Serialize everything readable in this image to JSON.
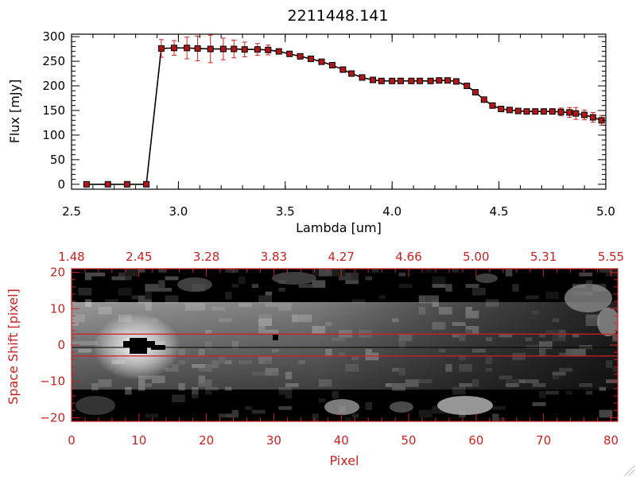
{
  "colors": {
    "axis": "#000000",
    "accent": "#cc2222",
    "marker": "#b01818",
    "line": "#000000"
  },
  "chart_data": [
    {
      "type": "line",
      "title": "2211448.141",
      "xlabel": "Lambda [um]",
      "ylabel": "Flux [mJy]",
      "xlim": [
        2.5,
        5.0
      ],
      "ylim": [
        -10,
        305
      ],
      "x_ticks": [
        2.5,
        3.0,
        3.5,
        4.0,
        4.5,
        5.0
      ],
      "x_tick_labels": [
        "2.5",
        "3.0",
        "3.5",
        "4.0",
        "4.5",
        "5.0"
      ],
      "y_ticks": [
        0,
        50,
        100,
        150,
        200,
        250,
        300
      ],
      "y_tick_labels": [
        "0",
        "50",
        "100",
        "150",
        "200",
        "250",
        "300"
      ],
      "series": [
        {
          "x": [
            2.57,
            2.67,
            2.76,
            2.85,
            2.92,
            2.98,
            3.04,
            3.09,
            3.15,
            3.21,
            3.26,
            3.31,
            3.37,
            3.42,
            3.47,
            3.52,
            3.57,
            3.62,
            3.67,
            3.72,
            3.77,
            3.81,
            3.86,
            3.91,
            3.95,
            4.0,
            4.04,
            4.09,
            4.13,
            4.18,
            4.22,
            4.26,
            4.3,
            4.35,
            4.39,
            4.43,
            4.47,
            4.51,
            4.55,
            4.59,
            4.63,
            4.67,
            4.71,
            4.75,
            4.79,
            4.83,
            4.86,
            4.9,
            4.94,
            4.98
          ],
          "y": [
            0,
            0,
            0,
            0,
            276,
            277,
            277,
            276,
            275,
            275,
            275,
            274,
            274,
            273,
            270,
            265,
            260,
            255,
            249,
            242,
            233,
            225,
            217,
            212,
            210,
            210,
            210,
            210,
            210,
            210,
            211,
            211,
            209,
            200,
            187,
            172,
            160,
            153,
            151,
            149,
            148,
            148,
            148,
            148,
            147,
            146,
            144,
            141,
            136,
            130
          ],
          "err": [
            0,
            0,
            0,
            0,
            18,
            15,
            22,
            25,
            28,
            22,
            18,
            15,
            12,
            10,
            5,
            5,
            4,
            4,
            4,
            4,
            4,
            3,
            3,
            3,
            3,
            3,
            3,
            3,
            3,
            3,
            3,
            3,
            3,
            4,
            4,
            4,
            4,
            4,
            4,
            4,
            4,
            4,
            4,
            4,
            8,
            10,
            12,
            10,
            10,
            10
          ]
        }
      ]
    },
    {
      "type": "heatmap",
      "xlabel": "Pixel",
      "ylabel": "Space Shift [pixel]",
      "xlim": [
        0,
        81
      ],
      "ylim": [
        -21,
        21
      ],
      "x_ticks": [
        0,
        10,
        20,
        30,
        40,
        50,
        60,
        70,
        80
      ],
      "x_tick_labels": [
        "0",
        "10",
        "20",
        "30",
        "40",
        "50",
        "60",
        "70",
        "80"
      ],
      "y_ticks": [
        -20,
        -10,
        0,
        10,
        20
      ],
      "y_tick_labels": [
        "−20",
        "−10",
        "0",
        "10",
        "20"
      ],
      "top_axis_ticks": [
        0,
        10,
        20,
        30,
        40,
        50,
        60,
        70,
        80
      ],
      "top_axis_labels": [
        "1.48",
        "2.45",
        "3.28",
        "3.83",
        "4.27",
        "4.66",
        "5.00",
        "5.31",
        "5.55"
      ],
      "aperture_lines": [
        3,
        -3
      ],
      "trace_center": 0
    }
  ]
}
